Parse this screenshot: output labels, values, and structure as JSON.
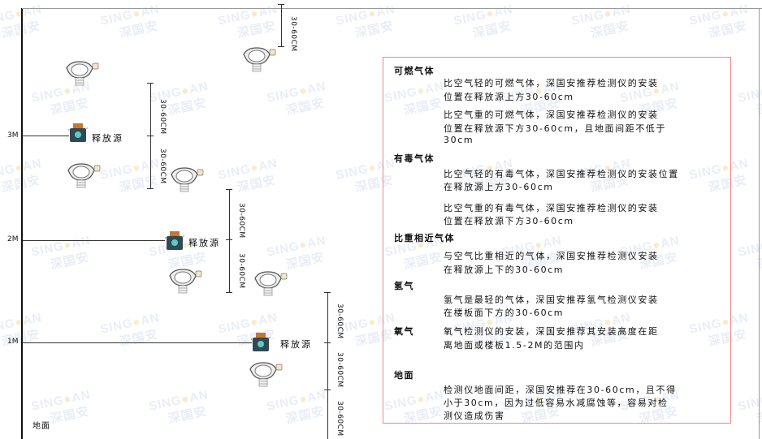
{
  "watermark": "SINGOAN 深国安",
  "levels": [
    {
      "label": "3M"
    },
    {
      "label": "2M"
    },
    {
      "label": "1M"
    }
  ],
  "source_label": "释放源",
  "ground_label": "地面",
  "dimension_label": "30-60CM",
  "legend": {
    "sections": [
      {
        "heading": "可燃气体",
        "lines": [
          "比空气轻的可燃气体，深国安推荐检测仪的安装",
          "位置在释放源上方30-60cm",
          "比空气重的可燃气体，深国安推荐检测仪的安装",
          "位置在释放源下方30-60cm，且地面间距不低于",
          "30cm"
        ]
      },
      {
        "heading": "有毒气体",
        "lines": [
          "比空气轻的有毒气体，深国安推荐检测仪的安装位置",
          "在释放源上方30-60cm",
          "比空气重的有毒气体，深国安推荐检测仪的安装",
          "位置在释放源下方30-60cm"
        ]
      },
      {
        "heading": "比重相近气体",
        "lines": [
          "与空气比重相近的气体，深国安推荐检测仪安装",
          "在释放源上下的30-60cm"
        ]
      },
      {
        "heading": "氢气",
        "lines": [
          "氢气是最轻的气体，深国安推荐氢气检测仪安装",
          "在楼板面下方的30-60cm"
        ]
      },
      {
        "heading": "氧气",
        "lines": [
          "氧气检测仪的安装，深国安推荐其安装高度在距",
          "离地面或楼板1.5-2M的范围内"
        ]
      },
      {
        "heading": "地面",
        "lines": [
          "检测仪地面间距，深国安推荐在30-60cm，且不得",
          "小于30cm，因为过低容易水减腐蚀等，容易对检",
          "测仪造成伤害"
        ]
      }
    ]
  },
  "colors": {
    "border": "#ee8888",
    "source_body": "#2f4a55",
    "source_cap": "#c8772a"
  }
}
